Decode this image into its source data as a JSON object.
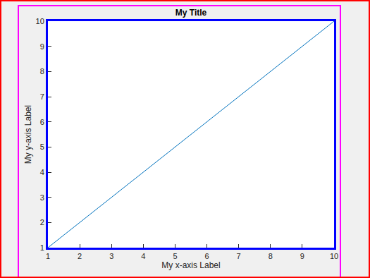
{
  "chart_data": {
    "type": "line",
    "title": "My Title",
    "x_label": "My x-axis Label",
    "y_label": "My y-axis Label",
    "x": [
      1,
      2,
      3,
      4,
      5,
      6,
      7,
      8,
      9,
      10
    ],
    "values": [
      1,
      2,
      3,
      4,
      5,
      6,
      7,
      8,
      9,
      10
    ],
    "color": "#0072bd",
    "xlim": [
      1,
      10
    ],
    "xticks": [
      1,
      2,
      3,
      4,
      5,
      6,
      7,
      8,
      9,
      10
    ],
    "ylim": [
      1,
      10
    ],
    "yticks": [
      1,
      2,
      3,
      4,
      5,
      6,
      7,
      8,
      9,
      10
    ],
    "grid": false
  }
}
